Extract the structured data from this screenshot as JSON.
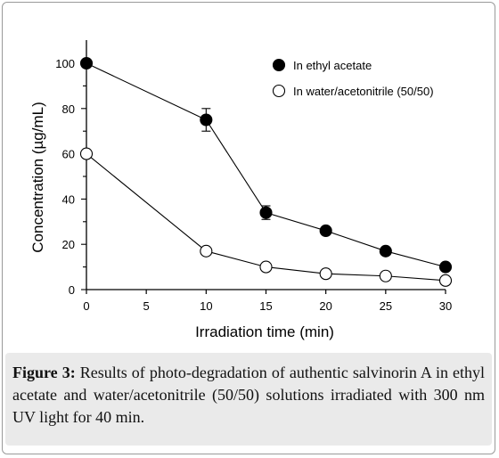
{
  "chart_data": {
    "type": "line",
    "xlabel": "Irradiation time (min)",
    "ylabel": "Concentration (µg/mL)",
    "xlim": [
      0,
      30
    ],
    "ylim": [
      0,
      100
    ],
    "x_ticks": [
      "0",
      "5",
      "10",
      "15",
      "20",
      "25",
      "30"
    ],
    "y_ticks": [
      "0",
      "20",
      "40",
      "60",
      "80",
      "100"
    ],
    "grid": false,
    "legend_position": "top-right",
    "series": [
      {
        "name": "In ethyl acetate",
        "marker": "filled-circle",
        "color": "#000000",
        "x": [
          0,
          10,
          15,
          20,
          25,
          30
        ],
        "y": [
          100,
          75,
          34,
          26,
          17,
          10
        ],
        "error": [
          0,
          5,
          3,
          0,
          0,
          0
        ]
      },
      {
        "name": "In water/acetonitrile (50/50)",
        "marker": "open-circle",
        "color": "#000000",
        "x": [
          0,
          10,
          15,
          20,
          25,
          30
        ],
        "y": [
          60,
          17,
          10,
          7,
          6,
          4
        ],
        "error": [
          0,
          0,
          0,
          0,
          0,
          0
        ]
      }
    ]
  },
  "caption": {
    "label": "Figure 3:",
    "text": " Results of photo-degradation of authentic salvinorin A in ethyl acetate and water/acetonitrile (50/50) solutions irradiated with 300 nm UV light for 40 min."
  }
}
